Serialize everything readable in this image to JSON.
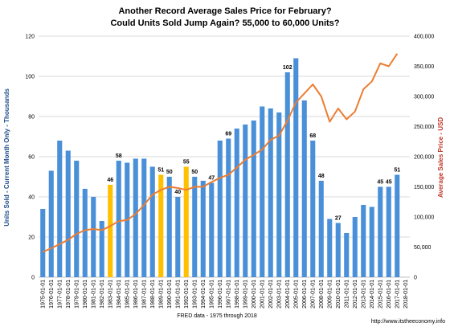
{
  "chart_data": {
    "type": "bar",
    "title_line1": "Another Record Average Sales Price for February?",
    "title_line2": "Could Units Sold Jump Again?  55,000 to 60,000 Units?",
    "ylabel_left": "Units Sold - Current Month Only - Thousands",
    "ylabel_right": "Average Sales Price - USD",
    "xlabel": "FRED data - 1975 through 2018",
    "source": "http://www.itstheeconomy.info",
    "ylim_left": [
      0,
      120
    ],
    "ylim_right": [
      0,
      400000
    ],
    "yticks_left": [
      "0",
      "20",
      "40",
      "60",
      "80",
      "100",
      "120"
    ],
    "yticks_right": [
      "0",
      "50,000",
      "100,000",
      "150,000",
      "200,000",
      "250,000",
      "300,000",
      "350,000",
      "400,000"
    ],
    "grid": true,
    "categories": [
      "1975-01-01",
      "1976-01-01",
      "1977-01-01",
      "1978-01-01",
      "1979-01-01",
      "1980-01-01",
      "1981-01-01",
      "1982-01-01",
      "1983-01-01",
      "1984-01-01",
      "1985-01-01",
      "1986-01-01",
      "1987-01-01",
      "1988-01-01",
      "1989-01-01",
      "1990-01-01",
      "1991-01-01",
      "1992-01-01",
      "1993-01-01",
      "1994-01-01",
      "1995-01-01",
      "1996-01-01",
      "1997-01-01",
      "1998-01-01",
      "1999-01-01",
      "2000-01-01",
      "2001-01-01",
      "2002-01-01",
      "2003-01-01",
      "2004-01-01",
      "2005-01-01",
      "2006-01-01",
      "2007-01-01",
      "2008-01-01",
      "2009-01-01",
      "2010-01-01",
      "2011-01-01",
      "2012-01-01",
      "2013-01-01",
      "2014-01-01",
      "2015-01-01",
      "2016-01-01",
      "2017-01-01",
      "2018-01-01"
    ],
    "series": [
      {
        "type": "bar",
        "axis": "left",
        "values": [
          34,
          53,
          68,
          63,
          58,
          44,
          40,
          28,
          46,
          58,
          57,
          59,
          59,
          55,
          51,
          50,
          40,
          55,
          50,
          48,
          47,
          68,
          69,
          74,
          76,
          78,
          85,
          84,
          82,
          102,
          109,
          88,
          68,
          48,
          29,
          27,
          22,
          30,
          36,
          35,
          45,
          45,
          51,
          null
        ],
        "highlighted": [
          "1983-01-01",
          "1989-01-01",
          "1992-01-01"
        ],
        "data_labels": {
          "1983-01-01": "46",
          "1984-01-01": "58",
          "1989-01-01": "51",
          "1990-01-01": "50",
          "1991-01-01": "40",
          "1992-01-01": "55",
          "1993-01-01": "50",
          "1995-01-01": "47",
          "1997-01-01": "69",
          "2004-01-01": "102",
          "2007-01-01": "68",
          "2008-01-01": "48",
          "2010-01-01": "27",
          "2015-01-01": "45",
          "2016-01-01": "45",
          "2017-01-01": "51"
        }
      },
      {
        "type": "line",
        "axis": "right",
        "values": [
          42000,
          48000,
          55000,
          62000,
          72000,
          78000,
          80000,
          78000,
          85000,
          93000,
          95000,
          105000,
          120000,
          137000,
          145000,
          150000,
          148000,
          145000,
          150000,
          150000,
          158000,
          165000,
          170000,
          182000,
          195000,
          203000,
          212000,
          228000,
          235000,
          260000,
          290000,
          305000,
          320000,
          300000,
          258000,
          280000,
          262000,
          275000,
          312000,
          325000,
          355000,
          350000,
          371000,
          null
        ]
      }
    ],
    "colors": {
      "bar": "#4A90D9",
      "bar_highlight": "#FFC000",
      "line": "#ED7D31",
      "ylabel_left": "#1F4E8C",
      "ylabel_right": "#C0392B",
      "grid": "#D9D9D9"
    }
  }
}
